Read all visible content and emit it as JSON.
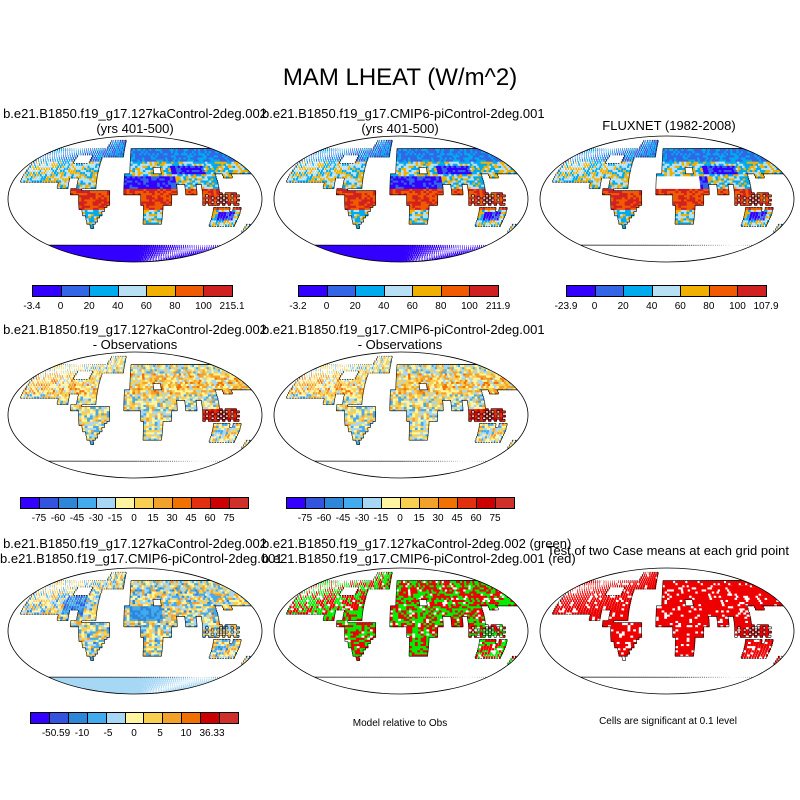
{
  "figure_title": "MAM LHEAT (W/m^2)",
  "palettes": {
    "abs": [
      "#3300ff",
      "#3366e6",
      "#00aaee",
      "#b8e0f4",
      "#f0b000",
      "#f05a00",
      "#d02020"
    ],
    "diff": [
      "#3300ff",
      "#3355dd",
      "#2e86d9",
      "#44aaee",
      "#a6d8f5",
      "#fff5a0",
      "#f8cf50",
      "#f2a12a",
      "#f07000",
      "#e03010",
      "#cc0000",
      "#d0302a"
    ],
    "diff2": [
      "#3300ff",
      "#3355dd",
      "#2e86d9",
      "#44aaee",
      "#a6d8f5",
      "#fff5a0",
      "#f8cf50",
      "#f2a12a",
      "#f07000",
      "#cc0000",
      "#d0302a"
    ]
  },
  "panels": [
    {
      "id": "p1",
      "title_line1": "b.e21.B1850.f19_g17.127kaControl-2deg.002",
      "title_line2": "(yrs 401-500)",
      "style": "abs",
      "colorbar": [
        "-3.4",
        "0",
        "20",
        "40",
        "60",
        "80",
        "100",
        "215.1"
      ]
    },
    {
      "id": "p2",
      "title_line1": "b.e21.B1850.f19_g17.CMIP6-piControl-2deg.001",
      "title_line2": "(yrs 401-500)",
      "style": "abs",
      "colorbar": [
        "-3.2",
        "0",
        "20",
        "40",
        "60",
        "80",
        "100",
        "211.9"
      ]
    },
    {
      "id": "p3",
      "title_line1": "FLUXNET (1982-2008)",
      "title_line2": "",
      "style": "obs",
      "colorbar": [
        "-23.9",
        "0",
        "20",
        "40",
        "60",
        "80",
        "100",
        "107.9"
      ]
    },
    {
      "id": "p4",
      "title_line1": "b.e21.B1850.f19_g17.127kaControl-2deg.002",
      "title_line2": "- Observations",
      "style": "diff",
      "colorbar": [
        "-75",
        "-60",
        "-45",
        "-30",
        "-15",
        "0",
        "15",
        "30",
        "45",
        "60",
        "75"
      ]
    },
    {
      "id": "p5",
      "title_line1": "b.e21.B1850.f19_g17.CMIP6-piControl-2deg.001",
      "title_line2": "- Observations",
      "style": "diff",
      "colorbar": [
        "-75",
        "-60",
        "-45",
        "-30",
        "-15",
        "0",
        "15",
        "30",
        "45",
        "60",
        "75"
      ]
    },
    {
      "id": "p7",
      "title_line1": "b.e21.B1850.f19_g17.127kaControl-2deg.002",
      "title_line2": "b.e21.B1850.f19_g17.CMIP6-piControl-2deg.001",
      "style": "diff2",
      "colorbar": [
        "-50.59",
        "-10",
        "-5",
        "0",
        "5",
        "10",
        "36.33"
      ]
    },
    {
      "id": "p8",
      "title_line1": "b.e21.B1850.f19_g17.127kaControl-2deg.002 (green)",
      "title_line2": "b.e21.B1850.f19_g17.CMIP6-piControl-2deg.001 (red)",
      "style": "rg",
      "note": "Model relative to Obs"
    },
    {
      "id": "p9",
      "title_line1": "Test of two Case means at each grid point",
      "title_line2": "",
      "style": "sig",
      "note": "Cells are significant at 0.1 level"
    }
  ]
}
